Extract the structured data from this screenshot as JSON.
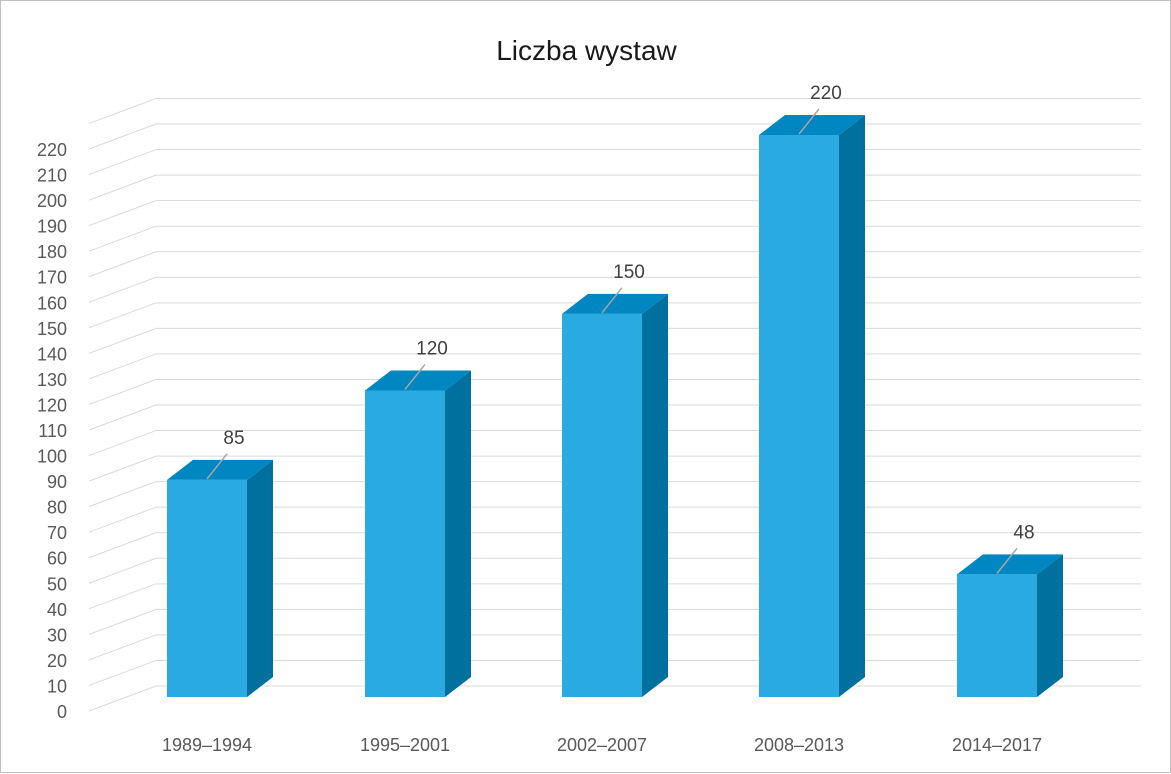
{
  "chart_data": {
    "type": "bar",
    "title": "Liczba wystaw",
    "categories": [
      "1989–1994",
      "1995–2001",
      "2002–2007",
      "2008–2013",
      "2014–2017"
    ],
    "values": [
      85,
      120,
      150,
      220,
      48
    ],
    "data_labels": [
      "85",
      "120",
      "150",
      "220",
      "48"
    ],
    "ylim": [
      0,
      220
    ],
    "yticks": [
      "0",
      "10",
      "20",
      "30",
      "40",
      "50",
      "60",
      "70",
      "80",
      "90",
      "100",
      "110",
      "120",
      "130",
      "140",
      "150",
      "160",
      "170",
      "180",
      "190",
      "200",
      "210",
      "220"
    ],
    "grid": true,
    "three_d": true,
    "legend": "none",
    "xlabel": "",
    "ylabel": ""
  },
  "colors": {
    "bar_front": "#29abe2",
    "bar_top": "#0086c0",
    "bar_side": "#00709e",
    "gridline": "#d9d9d9",
    "tick_text": "#595959",
    "label_text": "#404040",
    "leader_line": "#a6a6a6"
  }
}
